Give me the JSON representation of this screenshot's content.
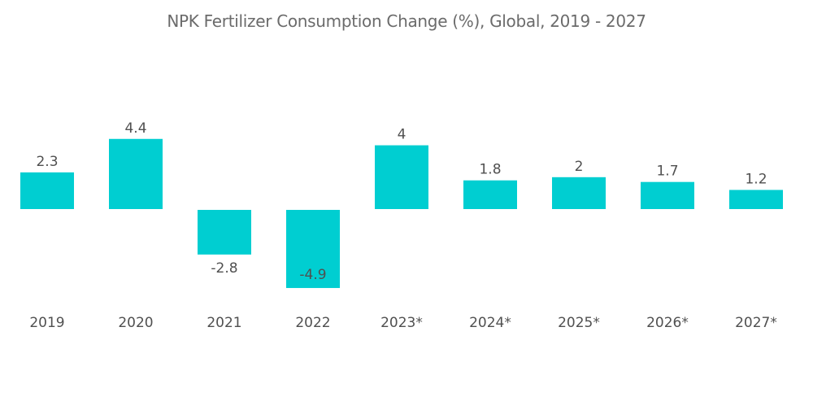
{
  "chart_data": {
    "type": "bar",
    "title": "NPK Fertilizer Consumption Change (%), Global, 2019 - 2027",
    "xlabel": "",
    "ylabel": "",
    "categories": [
      "2019",
      "2020",
      "2021",
      "2022",
      "2023*",
      "2024*",
      "2025*",
      "2026*",
      "2027*"
    ],
    "values": [
      2.3,
      4.4,
      -2.8,
      -4.9,
      4,
      1.8,
      2,
      1.7,
      1.2
    ],
    "data_labels": [
      "2.3",
      "4.4",
      "-2.8",
      "-4.9",
      "4",
      "1.8",
      "2",
      "1.7",
      "1.2"
    ],
    "ylim": [
      -4.9,
      4.4
    ],
    "grid": false,
    "legend": "none",
    "bar_color": "#00ced1"
  }
}
